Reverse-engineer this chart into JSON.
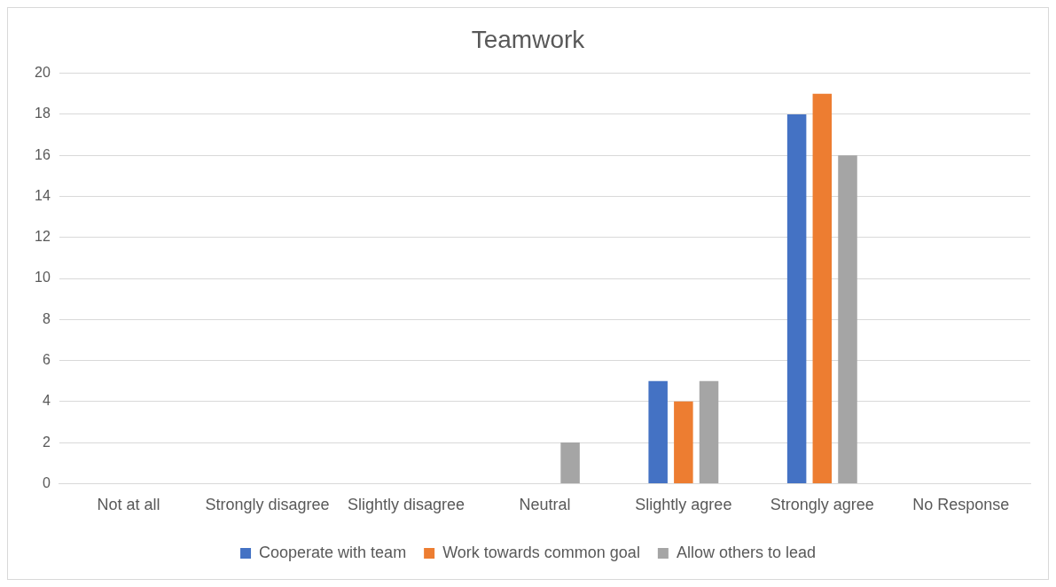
{
  "chart_data": {
    "type": "bar",
    "title": "Teamwork",
    "categories": [
      "Not at all",
      "Strongly disagree",
      "Slightly disagree",
      "Neutral",
      "Slightly agree",
      "Strongly agree",
      "No Response"
    ],
    "series": [
      {
        "name": "Cooperate with team",
        "color": "#4472c4",
        "values": [
          0,
          0,
          0,
          0,
          5,
          18,
          0
        ]
      },
      {
        "name": "Work towards common goal",
        "color": "#ed7d31",
        "values": [
          0,
          0,
          0,
          0,
          4,
          19,
          0
        ]
      },
      {
        "name": "Allow others to lead",
        "color": "#a5a5a5",
        "values": [
          0,
          0,
          0,
          2,
          5,
          16,
          0
        ]
      }
    ],
    "ylim": [
      0,
      20
    ],
    "yticks": [
      0,
      2,
      4,
      6,
      8,
      10,
      12,
      14,
      16,
      18,
      20
    ],
    "grid": "y",
    "legend": "bottom"
  }
}
